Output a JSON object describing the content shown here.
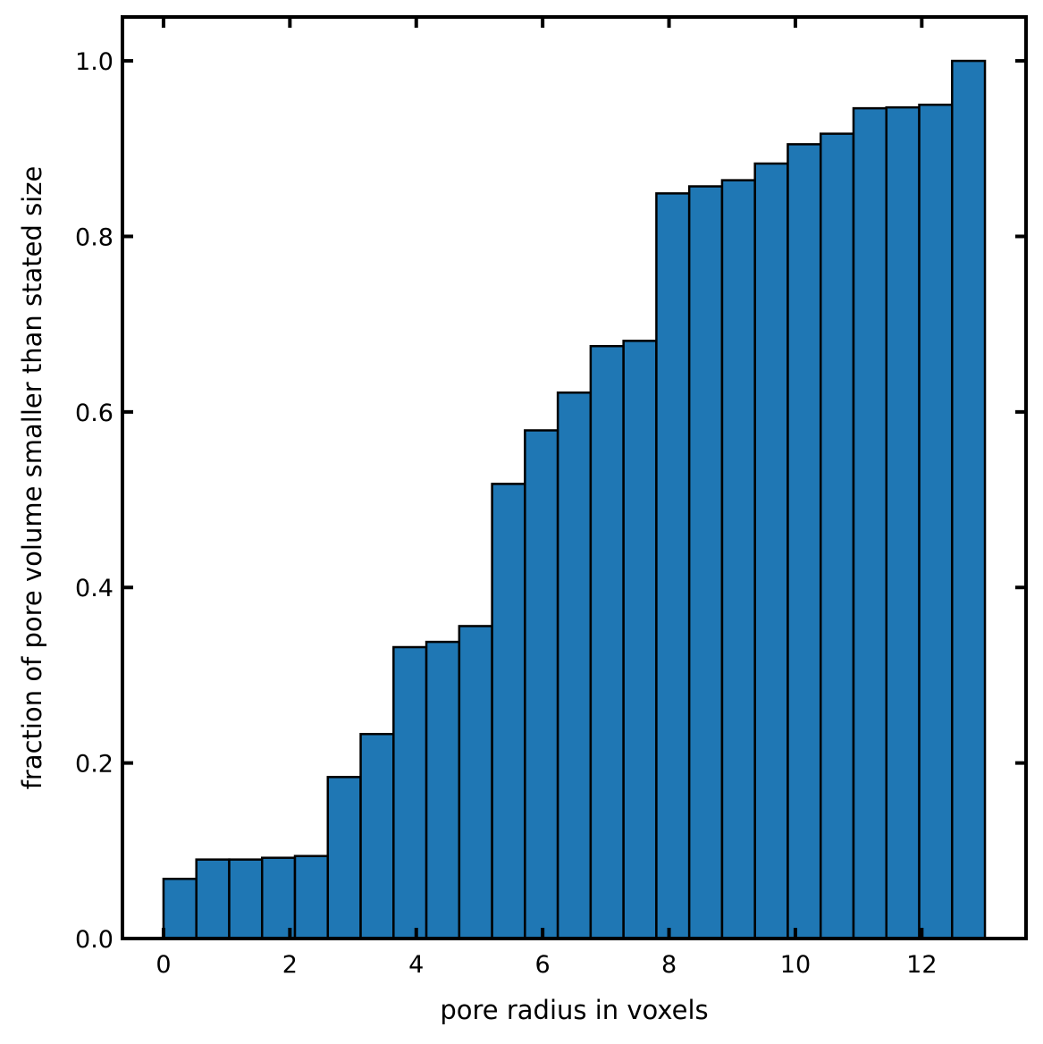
{
  "chart_data": {
    "type": "bar",
    "title": "",
    "xlabel": "pore radius in voxels",
    "ylabel": "fraction of pore volume smaller than stated size",
    "xlim": [
      -0.65,
      13.65
    ],
    "ylim": [
      0.0,
      1.05
    ],
    "xticks": [
      0,
      2,
      4,
      6,
      8,
      10,
      12
    ],
    "xtick_labels": [
      "0",
      "2",
      "4",
      "6",
      "8",
      "10",
      "12"
    ],
    "yticks": [
      0.0,
      0.2,
      0.4,
      0.6,
      0.8,
      1.0
    ],
    "ytick_labels": [
      "0.0",
      "0.2",
      "0.4",
      "0.6",
      "0.8",
      "1.0"
    ],
    "bar_color": "#1f77b4",
    "edge_color": "#000000",
    "grid": false,
    "bin_edges": [
      0.0,
      0.52,
      1.04,
      1.56,
      2.08,
      2.6,
      3.12,
      3.64,
      4.16,
      4.68,
      5.2,
      5.72,
      6.24,
      6.76,
      7.28,
      7.8,
      8.32,
      8.84,
      9.36,
      9.88,
      10.4,
      10.92,
      11.44,
      11.96,
      12.48,
      13.0
    ],
    "values": [
      0.068,
      0.09,
      0.09,
      0.092,
      0.094,
      0.184,
      0.233,
      0.332,
      0.338,
      0.356,
      0.518,
      0.579,
      0.622,
      0.675,
      0.681,
      0.849,
      0.857,
      0.864,
      0.883,
      0.905,
      0.917,
      0.946,
      0.947,
      0.95,
      1.0
    ]
  }
}
